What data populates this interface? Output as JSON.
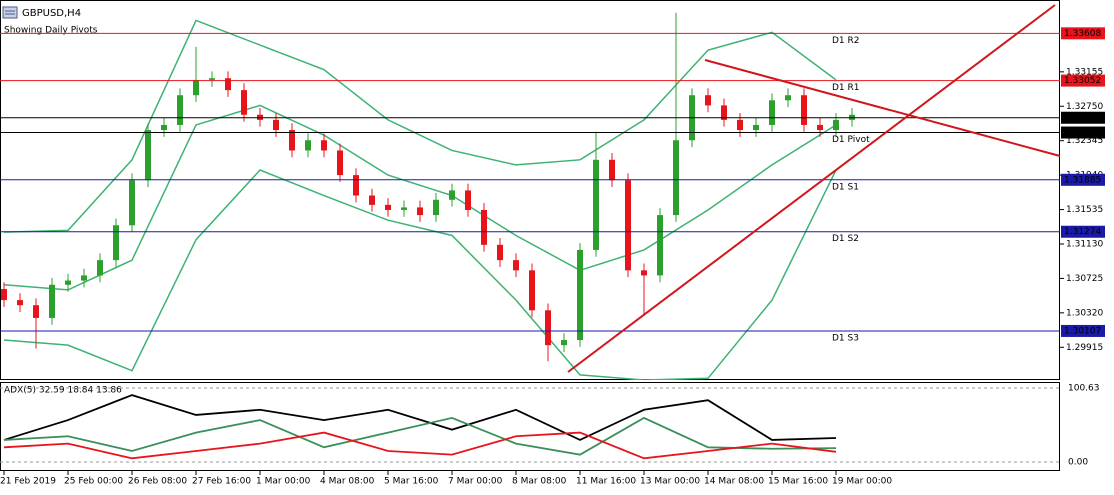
{
  "chart_data": {
    "type": "candlestick",
    "symbol": "GBPUSD,H4",
    "subtitle": "Showing Daily Pivots",
    "categories": [
      "21 Feb 2019",
      null,
      null,
      null,
      "25 Feb 00:00",
      null,
      null,
      null,
      "26 Feb 08:00",
      null,
      null,
      null,
      "27 Feb 16:00",
      null,
      null,
      null,
      "1 Mar 00:00",
      null,
      null,
      null,
      "4 Mar 08:00",
      null,
      null,
      null,
      "5 Mar 16:00",
      null,
      null,
      null,
      "7 Mar 00:00",
      null,
      null,
      null,
      "8 Mar 08:00",
      null,
      null,
      null,
      "11 Mar 16:00",
      null,
      null,
      null,
      "13 Mar 00:00",
      null,
      null,
      null,
      "14 Mar 08:00",
      null,
      null,
      null,
      "15 Mar 16:00",
      null,
      null,
      null,
      "19 Mar 00:00",
      null
    ],
    "open": [
      1.306,
      1.3047,
      1.3041,
      1.3026,
      1.3065,
      1.307,
      1.3076,
      1.3094,
      1.3135,
      1.3188,
      1.3247,
      1.3253,
      1.3288,
      1.3306,
      1.3308,
      1.3294,
      1.3265,
      1.3259,
      1.3247,
      1.3223,
      1.3235,
      1.3223,
      1.3194,
      1.317,
      1.3159,
      1.3153,
      1.3156,
      1.3147,
      1.3165,
      1.3176,
      1.3153,
      1.3112,
      1.3094,
      1.3082,
      1.3035,
      1.2994,
      1.3,
      1.3106,
      1.3212,
      1.3188,
      1.3082,
      1.3076,
      1.3147,
      1.3235,
      1.3288,
      1.3276,
      1.3259,
      1.3247,
      1.3253,
      1.3282,
      1.3288,
      1.3253,
      1.3247,
      1.3259
    ],
    "high": [
      1.3068,
      1.3055,
      1.3049,
      1.3073,
      1.3078,
      1.3084,
      1.3102,
      1.3143,
      1.3196,
      1.3255,
      1.3261,
      1.3296,
      1.3345,
      1.3316,
      1.3316,
      1.3302,
      1.3273,
      1.3267,
      1.3255,
      1.3243,
      1.3243,
      1.3231,
      1.3202,
      1.3178,
      1.3167,
      1.3164,
      1.3164,
      1.3173,
      1.3184,
      1.3184,
      1.3161,
      1.312,
      1.3102,
      1.309,
      1.3043,
      1.3008,
      1.3114,
      1.3245,
      1.322,
      1.3196,
      1.309,
      1.3155,
      1.3385,
      1.3296,
      1.3296,
      1.3284,
      1.3267,
      1.3261,
      1.329,
      1.3296,
      1.3296,
      1.3261,
      1.3267,
      1.3273
    ],
    "low": [
      1.3039,
      1.3033,
      1.299,
      1.3018,
      1.3057,
      1.3062,
      1.3068,
      1.3086,
      1.3127,
      1.318,
      1.3239,
      1.3245,
      1.328,
      1.3298,
      1.3286,
      1.3257,
      1.3251,
      1.3239,
      1.3215,
      1.3215,
      1.3215,
      1.3186,
      1.3162,
      1.3151,
      1.3145,
      1.3145,
      1.3139,
      1.3139,
      1.3157,
      1.3145,
      1.3104,
      1.3086,
      1.3074,
      1.3027,
      1.2975,
      1.2986,
      1.2992,
      1.3098,
      1.318,
      1.3074,
      1.303,
      1.3068,
      1.3139,
      1.3227,
      1.3268,
      1.3251,
      1.3239,
      1.3239,
      1.3245,
      1.3274,
      1.3245,
      1.3239,
      1.3239,
      1.3251
    ],
    "close": [
      1.3047,
      1.3041,
      1.3026,
      1.3065,
      1.307,
      1.3076,
      1.3094,
      1.3135,
      1.3188,
      1.3247,
      1.3253,
      1.3288,
      1.3306,
      1.3308,
      1.3294,
      1.3265,
      1.3259,
      1.3247,
      1.3223,
      1.3235,
      1.3223,
      1.3194,
      1.317,
      1.3159,
      1.3153,
      1.3156,
      1.3147,
      1.3165,
      1.3176,
      1.3153,
      1.3112,
      1.3094,
      1.3082,
      1.3035,
      1.2994,
      1.3,
      1.3106,
      1.3212,
      1.3188,
      1.3082,
      1.3076,
      1.3147,
      1.3235,
      1.3288,
      1.3276,
      1.3259,
      1.3247,
      1.3253,
      1.3282,
      1.3288,
      1.3253,
      1.3247,
      1.3259,
      1.3265
    ],
    "bull_color": "#2ca02c",
    "bear_color": "#e8141b",
    "ylim": [
      1.2953,
      1.34
    ],
    "yticks": [
      1.33155,
      {
        "value": 1.3275,
        "label": "1.32750"
      },
      1.32345,
      {
        "value": 1.3194,
        "label": "1.31940"
      },
      1.31535,
      {
        "value": 1.3113,
        "label": "1.31130"
      },
      1.30725,
      {
        "value": 1.3032,
        "label": "1.30320"
      },
      1.29915
    ],
    "pivots": [
      {
        "name": "D1 R2",
        "value": 1.33608,
        "color": "#e8141b"
      },
      {
        "name": "D1 R1",
        "value": 1.33052,
        "color": "#e8141b"
      },
      {
        "name": "D1 Pivot",
        "value": 1.32441,
        "color": "#000000"
      },
      {
        "name": "D1 S1",
        "value": 1.31885,
        "color": "#1a1aa6"
      },
      {
        "name": "D1 S2",
        "value": 1.31274,
        "color": "#1a1aa6"
      },
      {
        "name": "D1 S3",
        "value": 1.30107,
        "color": "#1a1aa6"
      }
    ],
    "price_lines": [
      {
        "value": 1.32615,
        "color": "#000000"
      }
    ],
    "overlay_x": [
      0,
      4,
      8,
      12,
      16,
      20,
      24,
      28,
      32,
      36,
      40,
      44,
      48,
      52
    ],
    "overlays": [
      {
        "color": "#3cb371",
        "values": [
          1.3127,
          1.3129,
          1.3212,
          1.3376,
          1.3347,
          1.3318,
          1.3259,
          1.3223,
          1.3206,
          1.3212,
          1.3259,
          1.3341,
          1.3362,
          1.3306
        ]
      },
      {
        "color": "#3cb371",
        "values": [
          1.3065,
          1.3059,
          1.3094,
          1.3253,
          1.3276,
          1.3241,
          1.3194,
          1.317,
          1.3123,
          1.3082,
          1.3106,
          1.3153,
          1.3206,
          1.3253
        ]
      },
      {
        "color": "#3cb371",
        "values": [
          1.3,
          1.2994,
          1.2964,
          1.3118,
          1.32,
          1.317,
          1.3141,
          1.3123,
          1.3047,
          1.2959,
          1.2953,
          1.2955,
          1.3047,
          1.32
        ]
      }
    ],
    "indicator": {
      "title": "ADX(5) 32.59 18.84 13.86",
      "ylim": [
        0,
        100.63
      ],
      "yticks": [
        100.63,
        {
          "value": 0,
          "label": "0.00"
        }
      ],
      "series": [
        {
          "color": "#000000",
          "values": [
            30,
            57,
            91,
            64,
            71,
            57,
            71,
            44,
            71,
            30,
            71,
            84,
            30,
            32.59
          ]
        },
        {
          "color": "#3a8f5a",
          "values": [
            30,
            35,
            15,
            40,
            57,
            20,
            40,
            60,
            25,
            10,
            60,
            20,
            18,
            18.84
          ]
        },
        {
          "color": "#e8141b",
          "values": [
            20,
            25,
            5,
            15,
            25,
            40,
            15,
            10,
            35,
            40,
            5,
            15,
            25,
            13.86
          ]
        }
      ]
    }
  }
}
